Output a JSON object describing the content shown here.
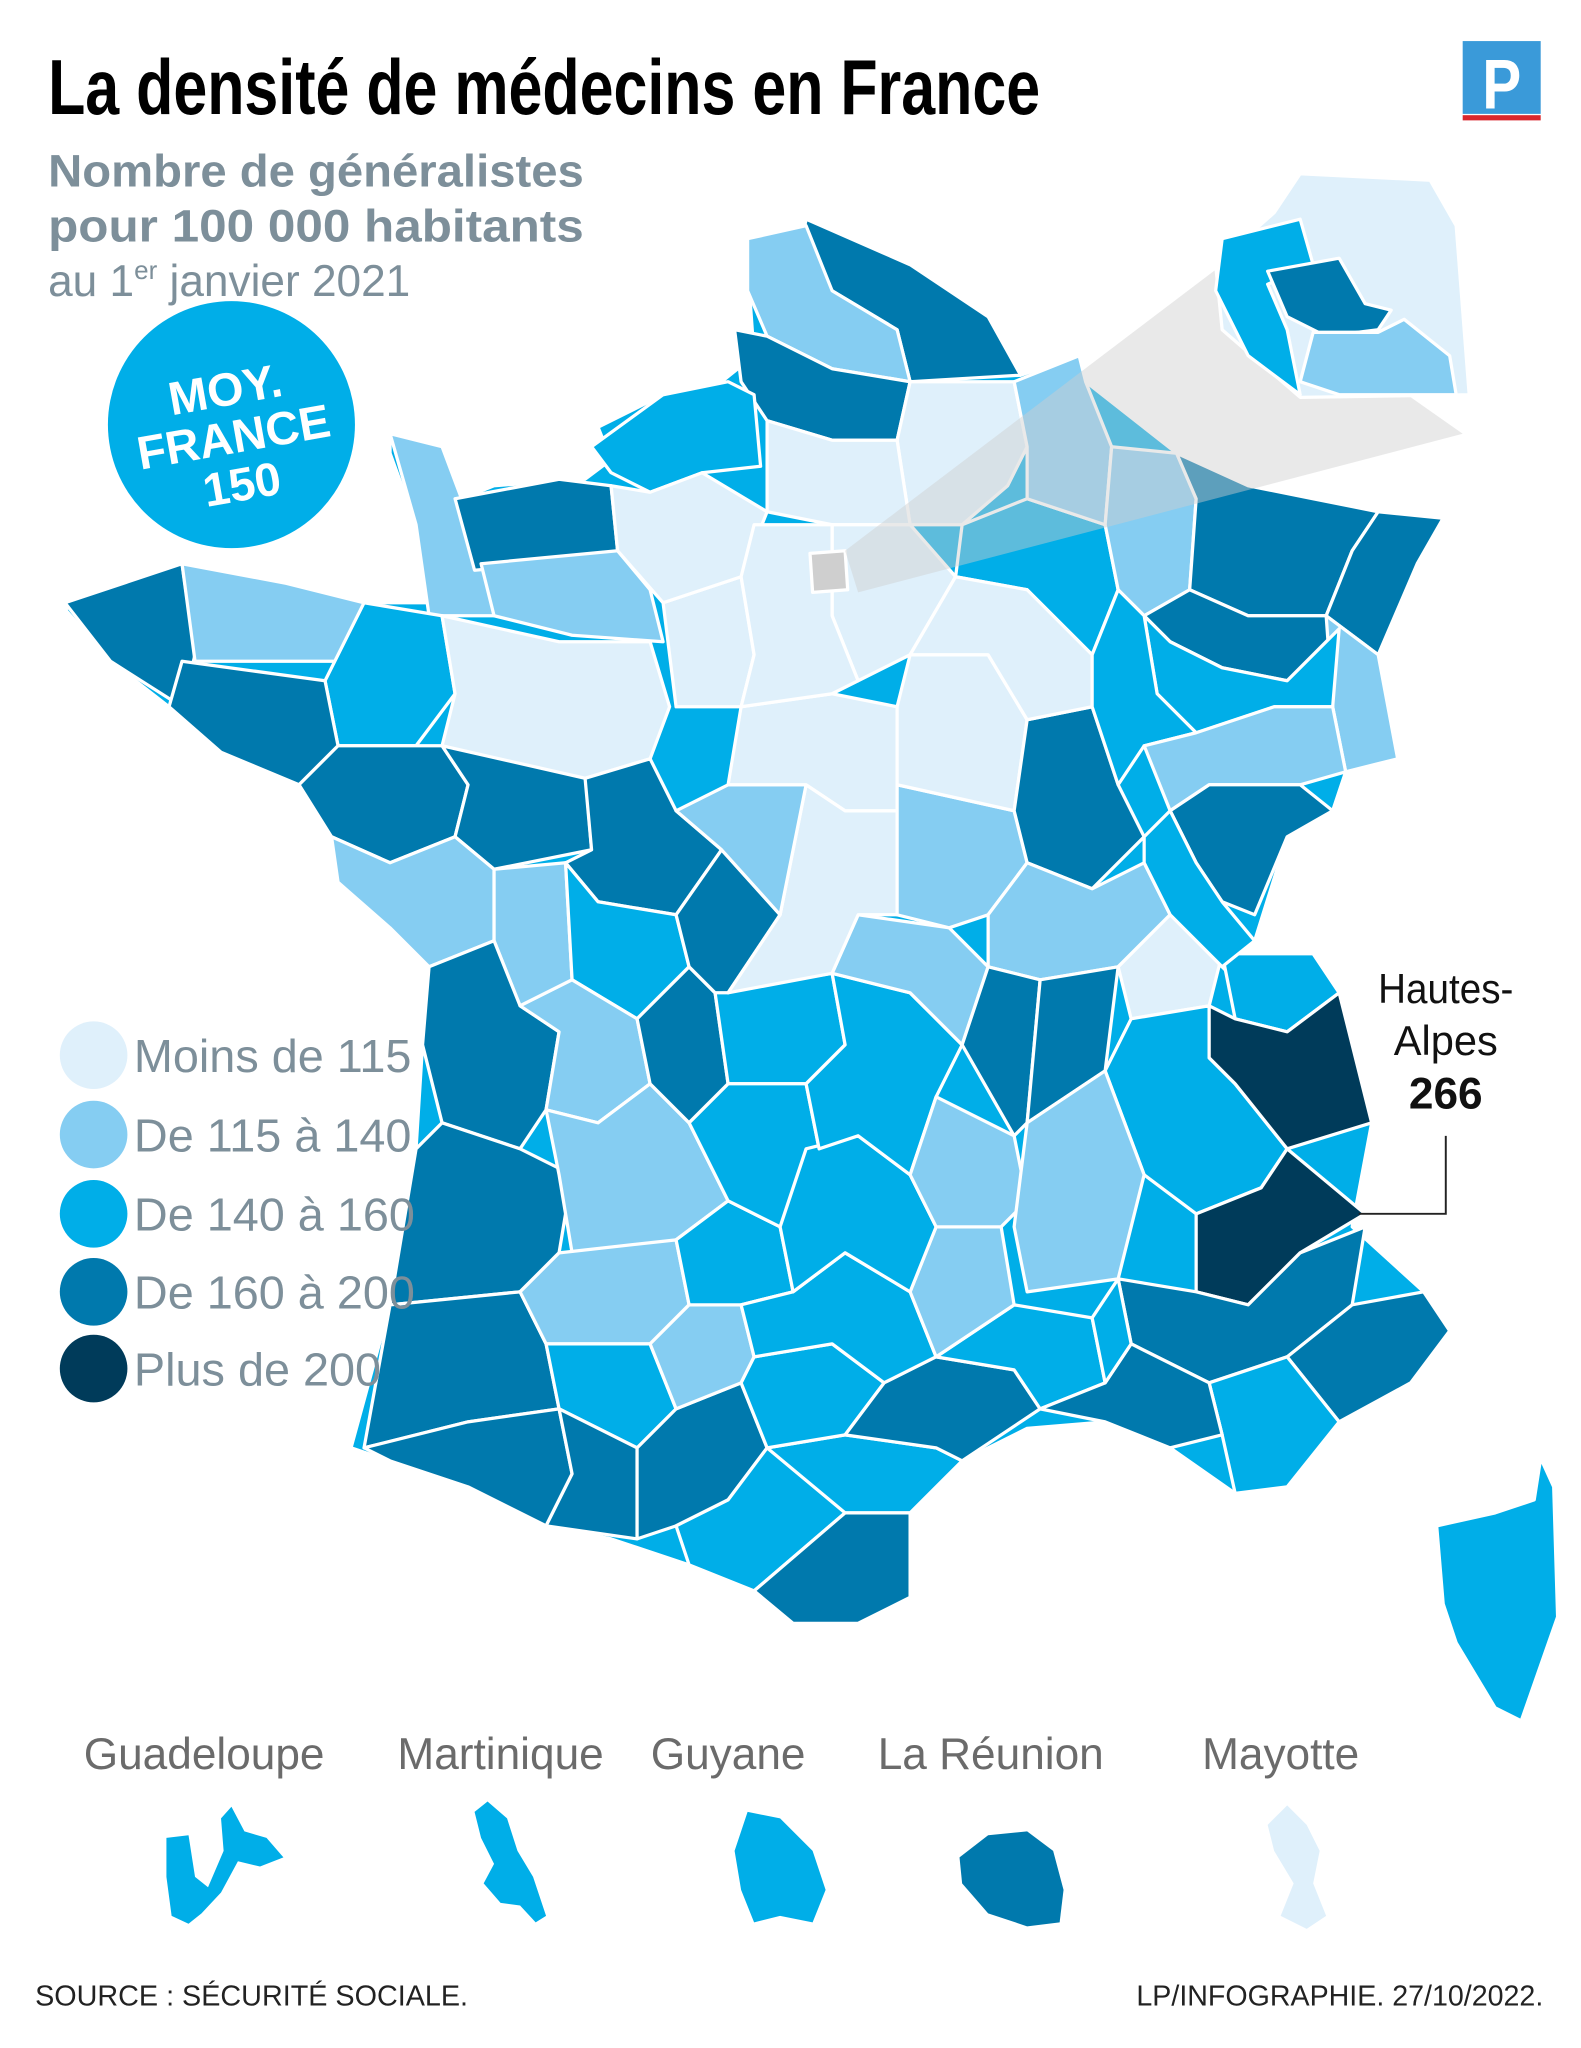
{
  "header": {
    "title": "La densité de médecins en France",
    "subtitle_line1": "Nombre de généralistes",
    "subtitle_line2": "pour 100 000 habitants",
    "date_prefix": "au 1",
    "date_sup": "er",
    "date_suffix": " janvier 2021",
    "logo_letter": "P"
  },
  "badge": {
    "line1": "MOY.",
    "line2": "FRANCE",
    "line3": "150",
    "color": "#00aee8"
  },
  "legend": [
    {
      "label": "Moins de 115",
      "color": "#dff0fb"
    },
    {
      "label": "De 115 à 140",
      "color": "#85cdf2"
    },
    {
      "label": "De 140 à 160",
      "color": "#00aee8"
    },
    {
      "label": "De 160 à 200",
      "color": "#0079ad"
    },
    {
      "label": "Plus de 200",
      "color": "#003b5a"
    }
  ],
  "annotation": {
    "line1": "Hautes-",
    "line2": "Alpes",
    "value": "266"
  },
  "overseas": [
    {
      "label": "Guadeloupe",
      "class": 2
    },
    {
      "label": "Martinique",
      "class": 2
    },
    {
      "label": "Guyane",
      "class": 2
    },
    {
      "label": "La Réunion",
      "class": 3
    },
    {
      "label": "Mayotte",
      "class": 0
    }
  ],
  "footer": {
    "source": "SOURCE : SÉCURITÉ SOCIALE.",
    "credit": "LP/INFOGRAPHIE.  27/10/2022."
  },
  "colors": {
    "logo_blue": "#3a9ad9",
    "logo_red": "#d9262c",
    "paris_gray": "#cfcfcf"
  }
}
